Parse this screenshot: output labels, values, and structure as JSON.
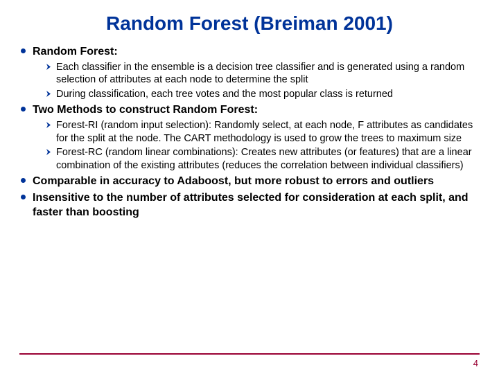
{
  "colors": {
    "title": "#003399",
    "bullet": "#003399",
    "arrow": "#003399",
    "text": "#000000",
    "line": "#990033",
    "pagenum": "#990033",
    "bg": "#ffffff"
  },
  "fonts": {
    "title_size": 28,
    "l1_size": 16,
    "l2_size": 14.5,
    "pagenum_size": 13
  },
  "title": "Random Forest (Breiman 2001)",
  "page_number": "4",
  "sections": [
    {
      "heading": "Random Forest:",
      "subs": [
        "Each classifier in the ensemble is a decision tree classifier and is generated using a random selection of attributes at each node to determine the split",
        "During classification, each tree votes and the most popular class is returned"
      ]
    },
    {
      "heading": "Two Methods to construct Random Forest:",
      "subs": [
        "Forest-RI (random input selection):  Randomly select, at each node, F attributes as candidates for the split at the node. The CART methodology is used to grow the trees to maximum size",
        "Forest-RC (random linear combinations):  Creates new attributes (or features) that are a linear combination of the existing attributes (reduces the correlation between individual classifiers)"
      ]
    },
    {
      "heading": "Comparable in accuracy to Adaboost, but more robust to errors and outliers",
      "subs": []
    },
    {
      "heading": "Insensitive to the number of attributes selected for consideration at each split, and faster than boosting",
      "subs": []
    }
  ]
}
